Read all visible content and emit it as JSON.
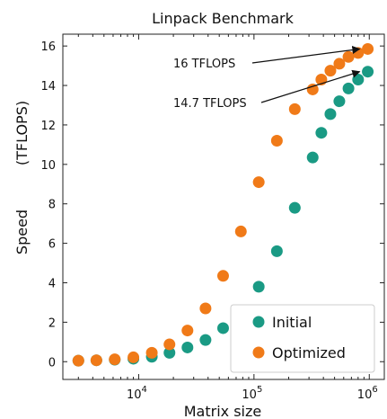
{
  "chart_data": {
    "type": "scatter",
    "title": "Linpack Benchmark",
    "xlabel": "Matrix size",
    "ylabel_parts": [
      "Speed",
      "(TFLOPS)"
    ],
    "xscale": "log",
    "xlim": [
      2200,
      1350000
    ],
    "ylim": [
      -0.9,
      16.6
    ],
    "yticks": [
      0,
      2,
      4,
      6,
      8,
      10,
      12,
      14,
      16
    ],
    "xticks": [
      {
        "value": 10000,
        "base": "10",
        "exp": "4"
      },
      {
        "value": 100000,
        "base": "10",
        "exp": "5"
      },
      {
        "value": 1000000,
        "base": "10",
        "exp": "6"
      }
    ],
    "legend_position": "lower-right",
    "series": [
      {
        "name": "Initial",
        "color": "#1a9a84",
        "points": [
          [
            3000,
            0.05
          ],
          [
            4300,
            0.07
          ],
          [
            6200,
            0.1
          ],
          [
            9000,
            0.15
          ],
          [
            13000,
            0.25
          ],
          [
            18500,
            0.45
          ],
          [
            26500,
            0.72
          ],
          [
            38000,
            1.1
          ],
          [
            54000,
            1.7
          ],
          [
            77000,
            2.6
          ],
          [
            110000,
            3.8
          ],
          [
            158000,
            5.6
          ],
          [
            226000,
            7.8
          ],
          [
            323000,
            10.35
          ],
          [
            384000,
            11.6
          ],
          [
            460000,
            12.55
          ],
          [
            550000,
            13.2
          ],
          [
            660000,
            13.85
          ],
          [
            800000,
            14.3
          ],
          [
            970000,
            14.7
          ]
        ]
      },
      {
        "name": "Optimized",
        "color": "#f07a18",
        "points": [
          [
            3000,
            0.05
          ],
          [
            4300,
            0.07
          ],
          [
            6200,
            0.12
          ],
          [
            9000,
            0.22
          ],
          [
            13000,
            0.45
          ],
          [
            18500,
            0.88
          ],
          [
            26500,
            1.58
          ],
          [
            38000,
            2.7
          ],
          [
            54000,
            4.35
          ],
          [
            77000,
            6.6
          ],
          [
            110000,
            9.1
          ],
          [
            158000,
            11.2
          ],
          [
            226000,
            12.8
          ],
          [
            323000,
            13.8
          ],
          [
            384000,
            14.3
          ],
          [
            460000,
            14.75
          ],
          [
            550000,
            15.1
          ],
          [
            660000,
            15.45
          ],
          [
            800000,
            15.65
          ],
          [
            970000,
            15.85
          ]
        ]
      }
    ],
    "annotations": [
      {
        "text": "16 TFLOPS",
        "target": [
          970000,
          15.85
        ]
      },
      {
        "text": "14.7 TFLOPS",
        "target": [
          970000,
          14.7
        ]
      }
    ]
  }
}
